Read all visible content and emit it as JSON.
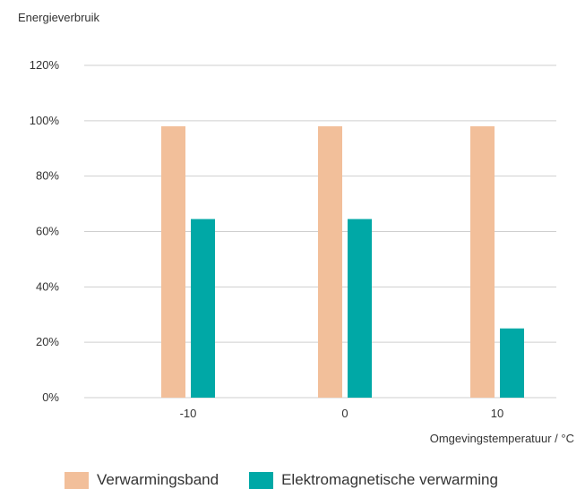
{
  "chart_data": {
    "type": "bar",
    "ylabel": "Energieverbruik",
    "xlabel": "Omgevingstemperatuur / °C",
    "categories": [
      "-10",
      "0",
      "10"
    ],
    "ylim": [
      0,
      120
    ],
    "yticks": [
      "0%",
      "20%",
      "40%",
      "60%",
      "80%",
      "100%",
      "120%"
    ],
    "grid": true,
    "legend_position": "bottom-left",
    "series": [
      {
        "name": "Verwarmingsband",
        "values": [
          98,
          98,
          98
        ],
        "color": "#f2bf9a"
      },
      {
        "name": "Elektromagnetische verwarming",
        "values": [
          64.5,
          64.5,
          25
        ],
        "color": "#00a8a6"
      }
    ]
  }
}
